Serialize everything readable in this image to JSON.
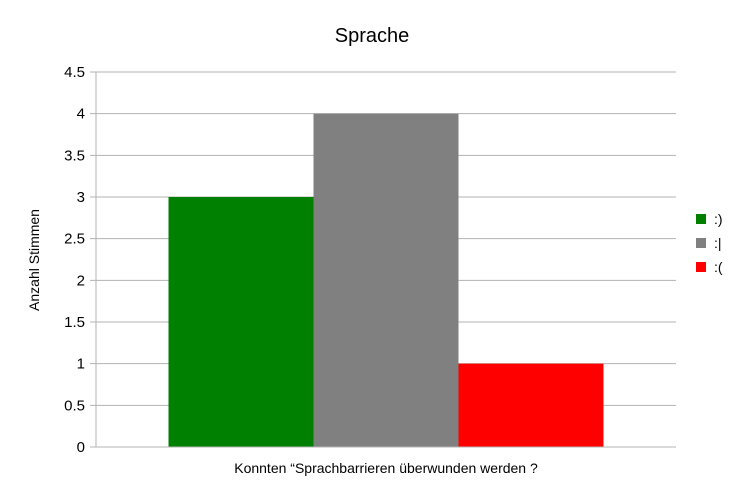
{
  "chart_data": {
    "type": "bar",
    "title": "Sprache",
    "xlabel": "Konnten “Sprachbarrieren überwunden werden ?",
    "ylabel": "Anzahl Stimmen",
    "ylim": [
      0,
      4.5
    ],
    "yticks": [
      "0",
      "0.5",
      "1",
      "1.5",
      "2",
      "2.5",
      "3",
      "3.5",
      "4",
      "4.5"
    ],
    "grid": true,
    "legend_position": "right",
    "series": [
      {
        "name": ":)",
        "values": [
          3
        ],
        "color": "#008000"
      },
      {
        "name": ":|",
        "values": [
          4
        ],
        "color": "#808080"
      },
      {
        "name": ":(",
        "values": [
          1
        ],
        "color": "#ff0000"
      }
    ]
  }
}
